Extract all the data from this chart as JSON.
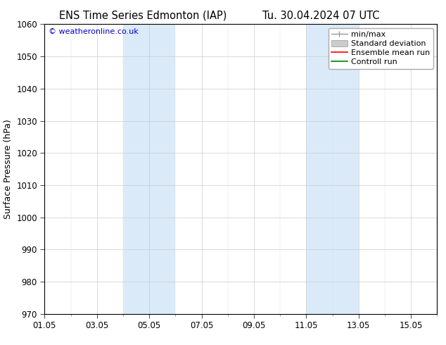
{
  "title_left": "ENS Time Series Edmonton (IAP)",
  "title_right": "Tu. 30.04.2024 07 UTC",
  "ylabel": "Surface Pressure (hPa)",
  "ylim": [
    970,
    1060
  ],
  "yticks": [
    970,
    980,
    990,
    1000,
    1010,
    1020,
    1030,
    1040,
    1050,
    1060
  ],
  "xstart_day": 0,
  "xend_day": 15,
  "xtick_labels": [
    "01.05",
    "03.05",
    "05.05",
    "07.05",
    "09.05",
    "11.05",
    "13.05",
    "15.05"
  ],
  "xtick_positions_days": [
    0,
    2,
    4,
    6,
    8,
    10,
    12,
    14
  ],
  "shaded_regions": [
    {
      "start_day": 3,
      "end_day": 5
    },
    {
      "start_day": 10,
      "end_day": 12
    }
  ],
  "shaded_color": "#daeaf8",
  "background_color": "#ffffff",
  "watermark": "© weatheronline.co.uk",
  "watermark_color": "#0000cc",
  "legend_items": [
    {
      "label": "min/max",
      "color": "#999999",
      "style": "line_with_bars"
    },
    {
      "label": "Standard deviation",
      "color": "#cccccc",
      "style": "filled"
    },
    {
      "label": "Ensemble mean run",
      "color": "#ff0000",
      "style": "line"
    },
    {
      "label": "Controll run",
      "color": "#008000",
      "style": "line"
    }
  ],
  "grid_color": "#cccccc",
  "spine_color": "#000000",
  "tick_fontsize": 8.5,
  "ylabel_fontsize": 9,
  "title_fontsize": 10.5,
  "legend_fontsize": 8
}
